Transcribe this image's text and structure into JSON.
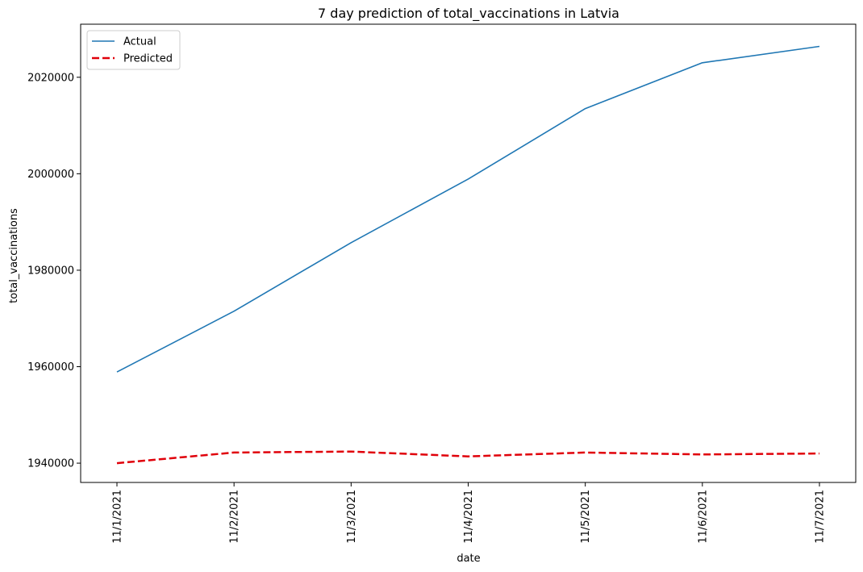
{
  "chart_data": {
    "type": "line",
    "title": "7 day prediction of total_vaccinations in Latvia",
    "xlabel": "date",
    "ylabel": "total_vaccinations",
    "categories": [
      "11/1/2021",
      "11/2/2021",
      "11/3/2021",
      "11/4/2021",
      "11/5/2021",
      "11/6/2021",
      "11/7/2021"
    ],
    "yticks": [
      1940000,
      1960000,
      1980000,
      2000000,
      2020000
    ],
    "ytick_labels": [
      "1940000",
      "1960000",
      "1980000",
      "2000000",
      "2020000"
    ],
    "ylim": [
      1936000,
      2031000
    ],
    "grid": false,
    "legend": "top-left",
    "series": [
      {
        "name": "Actual",
        "color": "#1f77b4",
        "dashed": false,
        "values": [
          1958900,
          1971500,
          1985700,
          1998900,
          2013500,
          2023000,
          2026400
        ]
      },
      {
        "name": "Predicted",
        "color": "#e0000a",
        "dashed": true,
        "values": [
          1940000,
          1942200,
          1942400,
          1941400,
          1942200,
          1941800,
          1942000
        ]
      }
    ]
  }
}
